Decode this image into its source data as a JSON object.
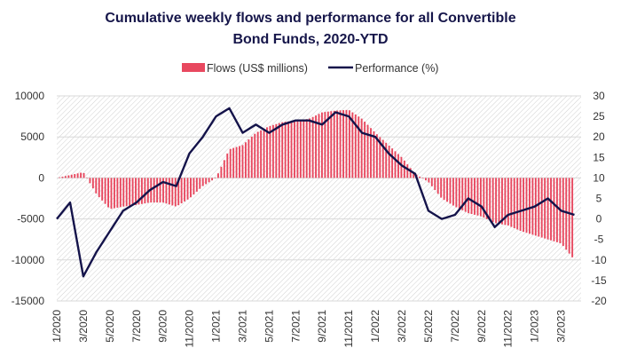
{
  "title_line1": "Cumulative weekly flows and performance for all Convertible",
  "title_line2": "Bond Funds, 2020-YTD",
  "colors": {
    "flows": "#e8485f",
    "performance": "#14134a",
    "axis_text": "#333333",
    "grid": "#d9d9d9",
    "hatch": "#cfcfcf"
  },
  "chart_data": {
    "type": "bar+line",
    "title": "Cumulative weekly flows and performance for all Convertible Bond Funds, 2020-YTD",
    "legend": {
      "position": "top-center",
      "entries": [
        "Flows (US$ millions)",
        "Performance (%)"
      ]
    },
    "left_axis": {
      "min": -15000,
      "max": 10000,
      "ticks": [
        10000,
        5000,
        0,
        -5000,
        -10000,
        -15000
      ],
      "tick_labels": [
        "10000",
        "5000",
        "0",
        "-5000",
        "-10000",
        "-15000"
      ]
    },
    "right_axis": {
      "min": -20,
      "max": 30,
      "ticks": [
        30,
        25,
        20,
        15,
        10,
        5,
        0,
        -5,
        -10,
        -15,
        -20
      ],
      "tick_labels": [
        "30",
        "25",
        "20",
        "15",
        "10",
        "5",
        "0",
        "-5",
        "-10",
        "-15",
        "-20"
      ]
    },
    "x_tick_labels": [
      "1/2020",
      "3/2020",
      "5/2020",
      "7/2020",
      "9/2020",
      "11/2020",
      "1/2021",
      "3/2021",
      "5/2021",
      "7/2021",
      "9/2021",
      "11/2021",
      "1/2022",
      "3/2022",
      "5/2022",
      "7/2022",
      "9/2022",
      "11/2022",
      "1/2023",
      "3/2023"
    ],
    "grid": true,
    "series": [
      {
        "name": "Flows (US$ millions)",
        "axis": "left",
        "kind": "bar",
        "x": [
          "1/2020",
          "3/2020",
          "4/2020",
          "5/2020",
          "6/2020",
          "7/2020",
          "8/2020",
          "9/2020",
          "10/2020",
          "11/2020",
          "12/2020",
          "1/2021",
          "2/2021",
          "3/2021",
          "4/2021",
          "5/2021",
          "6/2021",
          "7/2021",
          "8/2021",
          "9/2021",
          "10/2021",
          "11/2021",
          "12/2021",
          "1/2022",
          "2/2022",
          "3/2022",
          "4/2022",
          "5/2022",
          "6/2022",
          "7/2022",
          "8/2022",
          "9/2022",
          "10/2022",
          "11/2022",
          "12/2022",
          "1/2023",
          "2/2023",
          "3/2023",
          "4/2023"
        ],
        "values": [
          0,
          700,
          -2000,
          -3800,
          -3500,
          -3300,
          -3000,
          -3000,
          -3500,
          -2500,
          -1000,
          0,
          3500,
          4000,
          5500,
          6300,
          6800,
          7000,
          7200,
          8000,
          8200,
          8300,
          7200,
          5500,
          4000,
          2500,
          500,
          -500,
          -2500,
          -3500,
          -4300,
          -4700,
          -5500,
          -5800,
          -6500,
          -7000,
          -7500,
          -8000,
          -10000
        ]
      },
      {
        "name": "Performance (%)",
        "axis": "right",
        "kind": "line",
        "x": [
          "1/2020",
          "2/2020",
          "3/2020",
          "4/2020",
          "5/2020",
          "6/2020",
          "7/2020",
          "8/2020",
          "9/2020",
          "10/2020",
          "11/2020",
          "12/2020",
          "1/2021",
          "2/2021",
          "3/2021",
          "4/2021",
          "5/2021",
          "6/2021",
          "7/2021",
          "8/2021",
          "9/2021",
          "10/2021",
          "11/2021",
          "12/2021",
          "1/2022",
          "2/2022",
          "3/2022",
          "4/2022",
          "5/2022",
          "6/2022",
          "7/2022",
          "8/2022",
          "9/2022",
          "10/2022",
          "11/2022",
          "12/2022",
          "1/2023",
          "2/2023",
          "3/2023",
          "4/2023"
        ],
        "values": [
          0,
          4,
          -14,
          -8,
          -3,
          2,
          4,
          7,
          9,
          8,
          16,
          20,
          25,
          27,
          21,
          23,
          21,
          23,
          24,
          24,
          23,
          26,
          25,
          21,
          20,
          16,
          13,
          11,
          2,
          0,
          1,
          5,
          3,
          -2,
          1,
          2,
          3,
          5,
          2,
          1
        ]
      }
    ]
  }
}
